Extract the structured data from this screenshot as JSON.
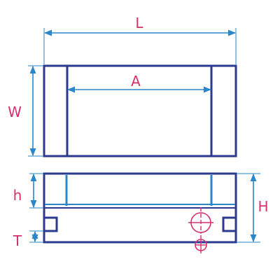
{
  "colors": {
    "body": "#2b3a8f",
    "dimension": "#2a86c8",
    "label": "#d6306b",
    "center_mark": "#d6306b",
    "background": "#ffffff"
  },
  "labels": {
    "length": "L",
    "inner_width": "A",
    "width": "W",
    "inner_height": "h",
    "height": "H",
    "thickness": "T"
  },
  "icons": {
    "hole_center": "crosshair-circle-icon",
    "lower_hole_center": "crosshair-circle-icon"
  }
}
